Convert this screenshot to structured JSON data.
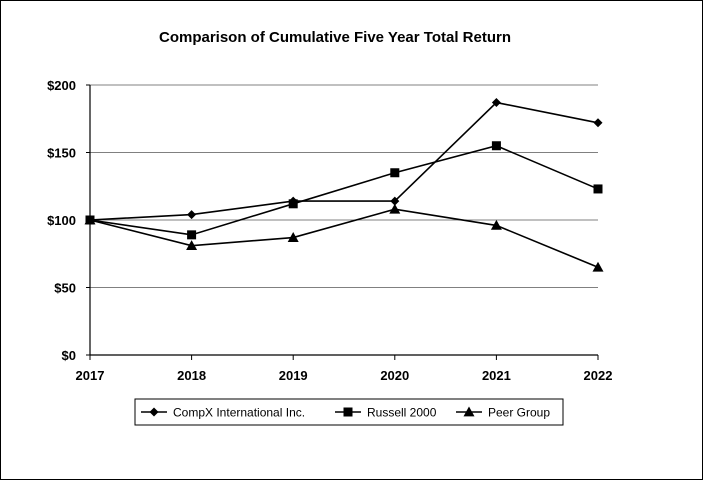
{
  "chart_data": {
    "type": "line",
    "title": "Comparison of Cumulative Five Year Total Return",
    "xlabel": "",
    "ylabel": "",
    "x": [
      "2017",
      "2018",
      "2019",
      "2020",
      "2021",
      "2022"
    ],
    "ylim": [
      0,
      200
    ],
    "yticks": [
      0,
      50,
      100,
      150,
      200
    ],
    "ytick_labels": [
      "$0",
      "$50",
      "$100",
      "$150",
      "$200"
    ],
    "grid": true,
    "legend_position": "bottom",
    "series": [
      {
        "name": "CompX International Inc.",
        "marker": "diamond",
        "color": "#000000",
        "values": [
          100,
          104,
          114,
          114,
          187,
          172
        ]
      },
      {
        "name": "Russell 2000",
        "marker": "square",
        "color": "#000000",
        "values": [
          100,
          89,
          112,
          135,
          155,
          123
        ]
      },
      {
        "name": "Peer Group",
        "marker": "triangle",
        "color": "#000000",
        "values": [
          100,
          81,
          87,
          108,
          96,
          65
        ]
      }
    ]
  }
}
